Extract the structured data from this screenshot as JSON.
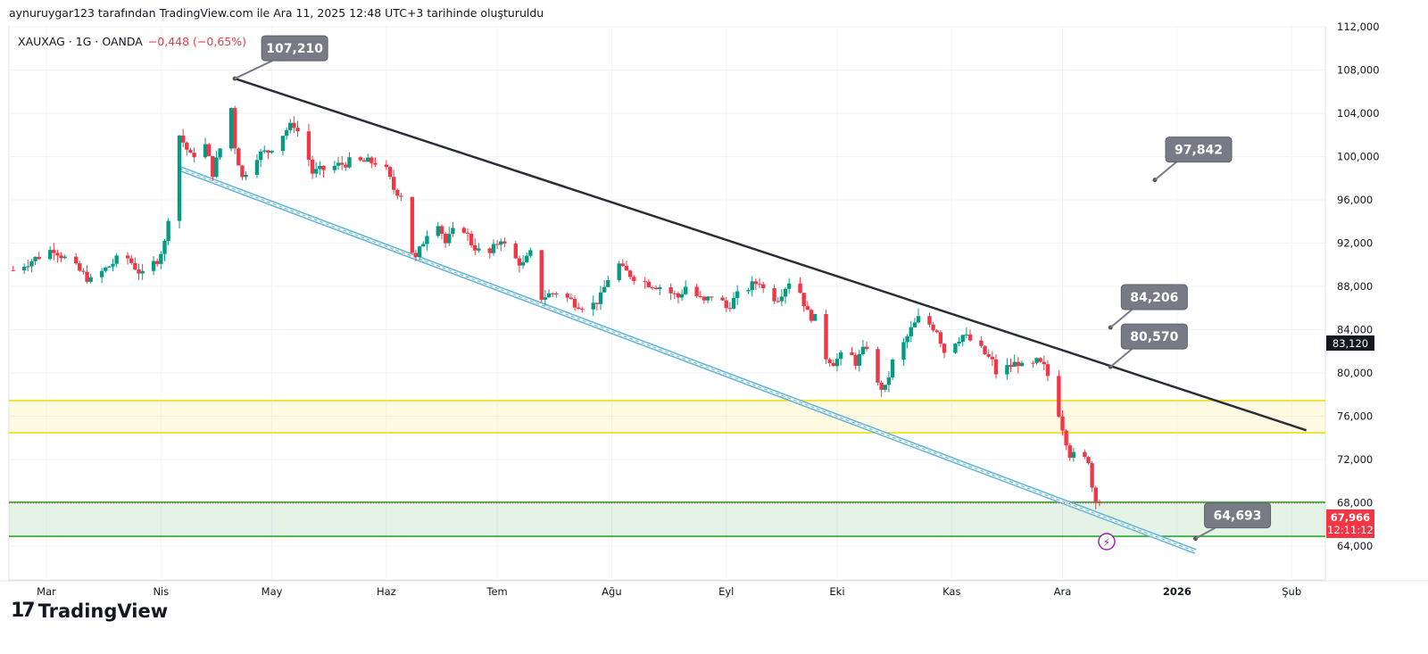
{
  "header": {
    "attribution": "aynuruygar123 tarafından TradingView.com ile Ara 11, 2025 12:48 UTC+3 tarihinde oluşturuldu",
    "symbol": "XAUXAG · 1G · OANDA",
    "change": "−0,448 (−0,65%)"
  },
  "logo": "TradingView",
  "chart_data": {
    "type": "candlestick",
    "series_name": "XAUXAG",
    "ylim": [
      64000,
      112000
    ],
    "y_ticks": [
      "64,000",
      "68,000",
      "72,000",
      "76,000",
      "80,000",
      "84,000",
      "88,000",
      "92,000",
      "96,000",
      "100,000",
      "104,000",
      "108,000",
      "112,000"
    ],
    "y_tick_values": [
      64000,
      68000,
      72000,
      76000,
      80000,
      84000,
      88000,
      92000,
      96000,
      100000,
      104000,
      108000,
      112000
    ],
    "x_ticks": [
      {
        "label": "Mar",
        "day": 59
      },
      {
        "label": "Nis",
        "day": 90
      },
      {
        "label": "May",
        "day": 120
      },
      {
        "label": "Haz",
        "day": 151
      },
      {
        "label": "Tem",
        "day": 181
      },
      {
        "label": "Ağu",
        "day": 212
      },
      {
        "label": "Eyl",
        "day": 243
      },
      {
        "label": "Eki",
        "day": 273
      },
      {
        "label": "Kas",
        "day": 304
      },
      {
        "label": "Ara",
        "day": 334
      },
      {
        "label": "2026",
        "day": 365
      },
      {
        "label": "Şub",
        "day": 396
      }
    ],
    "close_keypoints_day_price": [
      [
        50,
        89.5
      ],
      [
        61,
        91.5
      ],
      [
        71,
        88.5
      ],
      [
        80,
        91
      ],
      [
        85,
        89
      ],
      [
        89,
        90.5
      ],
      [
        91,
        92
      ],
      [
        93,
        97
      ],
      [
        95,
        102
      ],
      [
        98,
        100
      ],
      [
        102,
        101
      ],
      [
        104,
        98.5
      ],
      [
        108,
        103
      ],
      [
        109,
        104.5
      ],
      [
        110,
        101
      ],
      [
        112,
        98
      ],
      [
        115,
        100
      ],
      [
        119,
        100.5
      ],
      [
        124,
        102.5
      ],
      [
        126,
        103
      ],
      [
        129,
        101
      ],
      [
        131,
        98.5
      ],
      [
        136,
        99
      ],
      [
        141,
        99.5
      ],
      [
        145,
        99.5
      ],
      [
        150,
        99.5
      ],
      [
        153,
        97
      ],
      [
        155,
        96.5
      ],
      [
        157,
        92
      ],
      [
        159,
        90.5
      ],
      [
        162,
        93
      ],
      [
        165,
        94
      ],
      [
        167,
        92
      ],
      [
        171,
        94
      ],
      [
        174,
        92
      ],
      [
        178,
        90.5
      ],
      [
        182,
        92.5
      ],
      [
        184,
        91
      ],
      [
        188,
        90
      ],
      [
        190,
        91
      ],
      [
        193,
        87
      ],
      [
        197,
        87.5
      ],
      [
        202,
        86.5
      ],
      [
        206,
        86
      ],
      [
        209,
        87
      ],
      [
        213,
        90.5
      ],
      [
        215,
        89.5
      ],
      [
        220,
        88.5
      ],
      [
        225,
        88
      ],
      [
        230,
        87
      ],
      [
        232,
        88
      ],
      [
        237,
        86.5
      ],
      [
        240,
        87.5
      ],
      [
        243,
        86
      ],
      [
        247,
        87.5
      ],
      [
        252,
        88.5
      ],
      [
        254,
        87
      ],
      [
        257,
        87
      ],
      [
        260,
        88.5
      ],
      [
        263,
        87.5
      ],
      [
        265,
        85.5
      ],
      [
        267,
        85
      ],
      [
        270,
        81.5
      ],
      [
        272,
        81
      ],
      [
        276,
        82
      ],
      [
        278,
        81
      ],
      [
        281,
        82.5
      ],
      [
        283,
        79
      ],
      [
        286,
        78.5
      ],
      [
        288,
        81
      ],
      [
        290,
        82
      ],
      [
        293,
        84
      ],
      [
        295,
        85
      ],
      [
        298,
        84.5
      ],
      [
        300,
        84
      ],
      [
        302,
        82
      ],
      [
        305,
        83
      ],
      [
        307,
        83.5
      ],
      [
        311,
        82.5
      ],
      [
        315,
        81
      ],
      [
        317,
        79
      ],
      [
        319,
        80.5
      ],
      [
        322,
        81
      ],
      [
        324,
        80
      ],
      [
        327,
        81
      ],
      [
        329,
        80.5
      ],
      [
        331,
        79
      ],
      [
        334,
        75
      ],
      [
        336,
        72.5
      ],
      [
        339,
        72
      ],
      [
        341,
        72
      ],
      [
        342,
        69.5
      ],
      [
        343,
        68.5
      ],
      [
        344,
        67.966
      ]
    ],
    "last_price": "67,966",
    "countdown": "12:11:12",
    "last_value": 67966,
    "crosshair_label": "83,120",
    "annotations": [
      {
        "label": "107,210",
        "day": 110,
        "price": 107210
      },
      {
        "label": "97,842",
        "day": 359,
        "price": 97842
      },
      {
        "label": "84,206",
        "day": 347,
        "price": 84206
      },
      {
        "label": "80,570",
        "day": 347,
        "price": 80570
      },
      {
        "label": "64,693",
        "day": 370,
        "price": 64693
      }
    ],
    "zones": [
      {
        "name": "resistance",
        "top": 77450,
        "bottom": 74470,
        "color": "#f5e13a"
      },
      {
        "name": "support",
        "top": 68050,
        "bottom": 64900,
        "color": "#4caf50"
      }
    ],
    "trendline": {
      "from": [
        110,
        107210
      ],
      "to": [
        400,
        74700
      ]
    },
    "channel": {
      "from": [
        95,
        98900
      ],
      "to": [
        370,
        63500
      ]
    },
    "colors": {
      "up": "#089981",
      "down": "#f23645"
    }
  }
}
